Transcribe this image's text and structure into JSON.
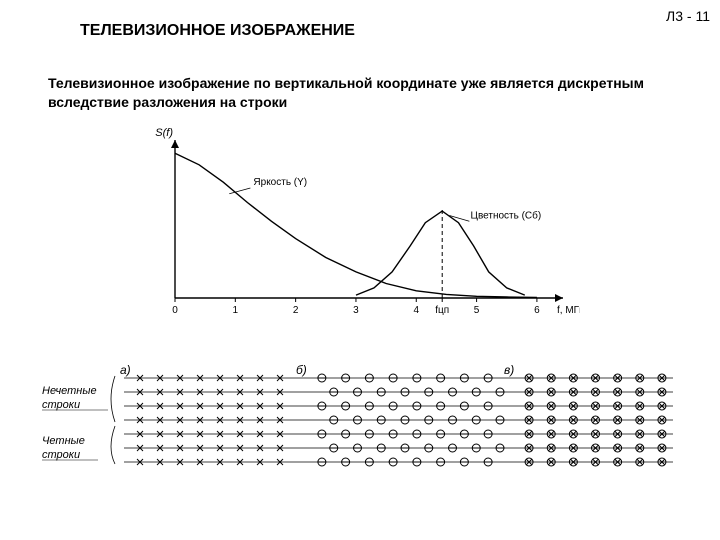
{
  "header": {
    "page_label": "Л3 - 11",
    "title": "ТЕЛЕВИЗИОННОЕ ИЗОБРАЖЕНИЕ",
    "subtitle": "Телевизионное изображение по вертикальной координате уже является дискретным вследствие разложения на строки"
  },
  "chart": {
    "type": "line",
    "y_label": "S(f)",
    "x_unit": "f, МГц",
    "x_ticks": [
      "0",
      "1",
      "2",
      "3",
      "4",
      "",
      "5",
      "6"
    ],
    "tick_mid_label": "fцп",
    "series": [
      {
        "label": "Яркость (Y)",
        "points": [
          [
            0,
            1.0
          ],
          [
            0.4,
            0.92
          ],
          [
            0.8,
            0.8
          ],
          [
            1.2,
            0.66
          ],
          [
            1.6,
            0.53
          ],
          [
            2.0,
            0.41
          ],
          [
            2.5,
            0.28
          ],
          [
            3.0,
            0.18
          ],
          [
            3.5,
            0.1
          ],
          [
            4.0,
            0.05
          ],
          [
            4.5,
            0.025
          ],
          [
            5.0,
            0.012
          ],
          [
            5.5,
            0.007
          ],
          [
            6.0,
            0.004
          ]
        ]
      },
      {
        "label": "Цветность (Cб)",
        "points": [
          [
            3.0,
            0.02
          ],
          [
            3.3,
            0.07
          ],
          [
            3.6,
            0.18
          ],
          [
            3.9,
            0.36
          ],
          [
            4.15,
            0.52
          ],
          [
            4.43,
            0.6
          ],
          [
            4.7,
            0.52
          ],
          [
            4.95,
            0.36
          ],
          [
            5.2,
            0.18
          ],
          [
            5.5,
            0.07
          ],
          [
            5.8,
            0.02
          ]
        ]
      }
    ],
    "xlim": [
      0,
      6.3
    ],
    "ylim": [
      0,
      1.05
    ],
    "axis_color": "#000000",
    "line_color": "#000000",
    "line_width": 1.4,
    "background_color": "#ffffff",
    "dash_x": 4.43
  },
  "scanlines": {
    "panel_labels": {
      "a": "a)",
      "b": "б)",
      "c": "в)"
    },
    "row_group_labels": {
      "odd": "Нечетные строки",
      "even": "Четные строки"
    },
    "label_fontstyle": "italic",
    "n_rows": 7,
    "panel_a": {
      "marker": "x",
      "color": "#000000",
      "cols": 8
    },
    "panel_b": {
      "marker": "ox",
      "color": "#000000",
      "cols": 8
    },
    "panel_c": {
      "marker": "overlap",
      "color": "#000000",
      "cols": 7
    },
    "row_line_color": "#000000"
  }
}
